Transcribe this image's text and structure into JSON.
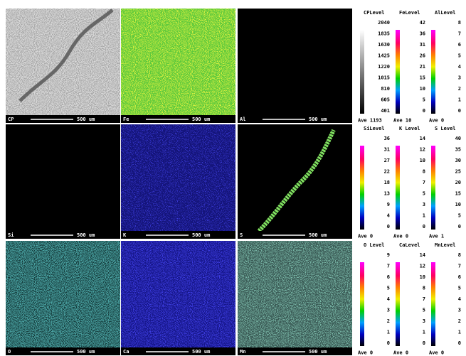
{
  "panels": [
    {
      "label": "CP",
      "scale": "500 um"
    },
    {
      "label": "Fe",
      "scale": "500 um"
    },
    {
      "label": "Al",
      "scale": "500 um"
    },
    {
      "label": "Si",
      "scale": "500 um"
    },
    {
      "label": "K",
      "scale": "500 um"
    },
    {
      "label": "S",
      "scale": "500 um"
    },
    {
      "label": "O",
      "scale": "500 um"
    },
    {
      "label": "Ca",
      "scale": "500 um"
    },
    {
      "label": "Mn",
      "scale": "500 um"
    }
  ],
  "legends": [
    {
      "title": "CPLevel",
      "levels": [
        "2040",
        "1835",
        "1630",
        "1425",
        "1220",
        "1015",
        "810",
        "605",
        "401"
      ],
      "ave": "Ave 1193"
    },
    {
      "title": "FeLevel",
      "levels": [
        "42",
        "36",
        "31",
        "26",
        "21",
        "15",
        "10",
        "5",
        "0"
      ],
      "ave": "Ave 10"
    },
    {
      "title": "AlLevel",
      "levels": [
        "8",
        "7",
        "6",
        "5",
        "4",
        "3",
        "2",
        "1",
        "0"
      ],
      "ave": "Ave 0"
    },
    {
      "title": "SiLevel",
      "levels": [
        "36",
        "31",
        "27",
        "22",
        "18",
        "13",
        "9",
        "4",
        "0"
      ],
      "ave": "Ave 0"
    },
    {
      "title": "K Level",
      "levels": [
        "14",
        "12",
        "10",
        "8",
        "7",
        "5",
        "3",
        "1",
        "0"
      ],
      "ave": "Ave 0"
    },
    {
      "title": "S Level",
      "levels": [
        "40",
        "35",
        "30",
        "25",
        "20",
        "15",
        "10",
        "5",
        "0"
      ],
      "ave": "Ave 1"
    },
    {
      "title": "O Level",
      "levels": [
        "9",
        "7",
        "6",
        "5",
        "4",
        "3",
        "2",
        "1",
        "0"
      ],
      "ave": "Ave 0"
    },
    {
      "title": "CaLevel",
      "levels": [
        "14",
        "12",
        "10",
        "8",
        "7",
        "5",
        "3",
        "1",
        "0"
      ],
      "ave": "Ave 0"
    },
    {
      "title": "MnLevel",
      "levels": [
        "8",
        "7",
        "6",
        "5",
        "4",
        "3",
        "2",
        "1",
        "0"
      ],
      "ave": "Ave 0"
    }
  ]
}
